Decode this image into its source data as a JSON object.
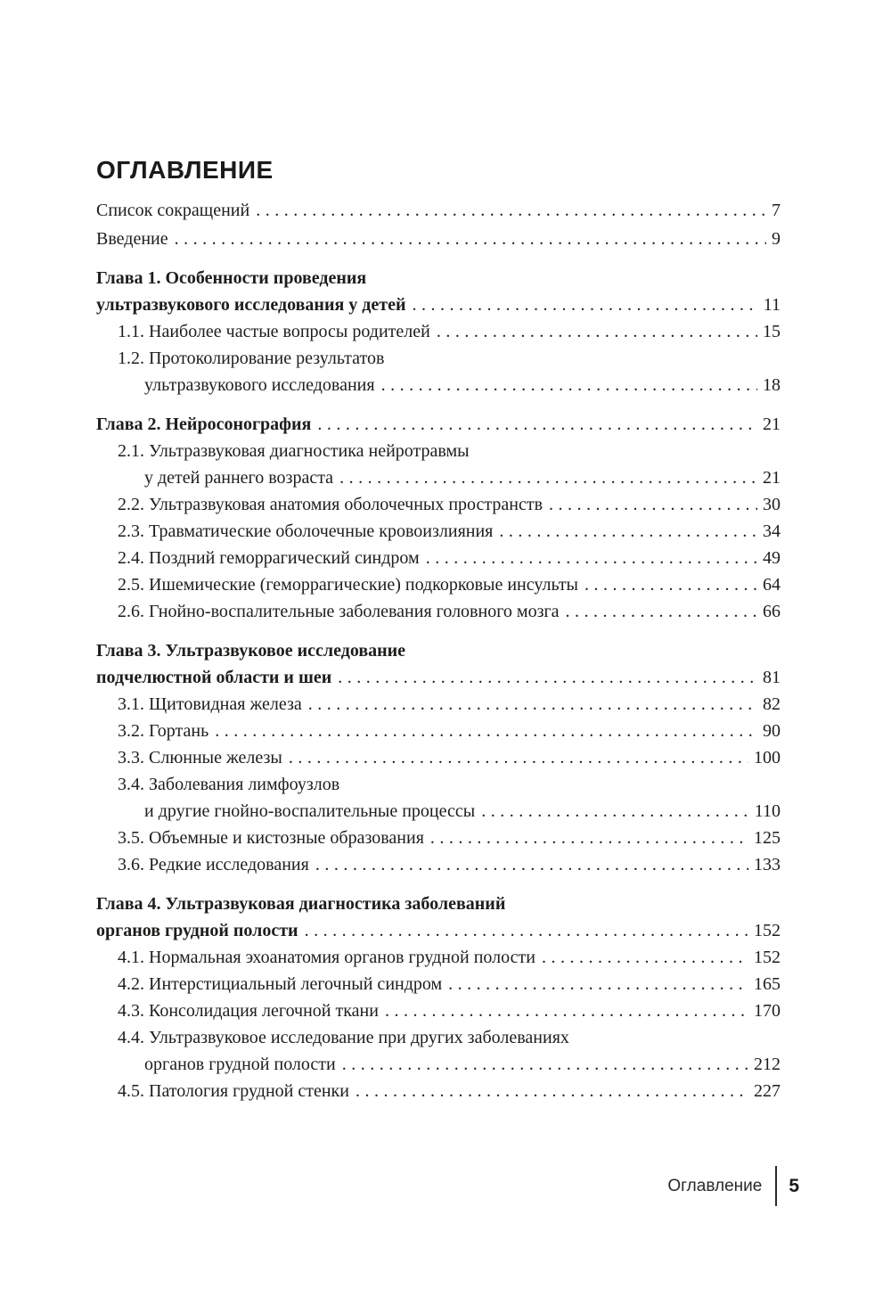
{
  "page_title": "ОГЛАВЛЕНИЕ",
  "footer": {
    "section_label": "Оглавление",
    "page_number": "5"
  },
  "colors": {
    "text": "#1d1d1b",
    "background": "#ffffff"
  },
  "toc": {
    "entries": [
      {
        "type": "front",
        "lines": [
          "Список сокращений"
        ],
        "page": "7"
      },
      {
        "type": "front",
        "lines": [
          "Введение"
        ],
        "page": "9"
      },
      {
        "type": "chapter",
        "lines": [
          "Глава 1. Особенности проведения",
          "ультразвукового исследования у детей"
        ],
        "page": "11"
      },
      {
        "type": "section",
        "lines": [
          "1.1. Наиболее частые вопросы родителей"
        ],
        "page": "15"
      },
      {
        "type": "section",
        "lines": [
          "1.2. Протоколирование результатов",
          "ультразвукового исследования"
        ],
        "page": "18"
      },
      {
        "type": "chapter",
        "lines": [
          "Глава 2. Нейросонография"
        ],
        "page": "21"
      },
      {
        "type": "section",
        "lines": [
          "2.1. Ультразвуковая диагностика нейротравмы",
          "у детей раннего возраста"
        ],
        "page": "21"
      },
      {
        "type": "section",
        "lines": [
          "2.2. Ультразвуковая анатомия оболочечных пространств"
        ],
        "page": "30"
      },
      {
        "type": "section",
        "lines": [
          "2.3. Травматические оболочечные кровоизлияния"
        ],
        "page": "34"
      },
      {
        "type": "section",
        "lines": [
          "2.4. Поздний геморрагический синдром"
        ],
        "page": "49"
      },
      {
        "type": "section",
        "lines": [
          "2.5. Ишемические (геморрагические) подкорковые инсульты"
        ],
        "page": "64"
      },
      {
        "type": "section",
        "lines": [
          "2.6. Гнойно-воспалительные заболевания головного мозга"
        ],
        "page": "66"
      },
      {
        "type": "chapter",
        "lines": [
          "Глава 3. Ультразвуковое исследование",
          "подчелюстной области и шеи"
        ],
        "page": "81"
      },
      {
        "type": "section",
        "lines": [
          "3.1. Щитовидная железа"
        ],
        "page": "82"
      },
      {
        "type": "section",
        "lines": [
          "3.2. Гортань"
        ],
        "page": "90"
      },
      {
        "type": "section",
        "lines": [
          "3.3. Слюнные железы"
        ],
        "page": "100"
      },
      {
        "type": "section",
        "lines": [
          "3.4. Заболевания лимфоузлов",
          "и другие гнойно-воспалительные процессы"
        ],
        "page": "110"
      },
      {
        "type": "section",
        "lines": [
          "3.5. Объемные и кистозные образования"
        ],
        "page": "125"
      },
      {
        "type": "section",
        "lines": [
          "3.6. Редкие исследования"
        ],
        "page": "133"
      },
      {
        "type": "chapter",
        "lines": [
          "Глава 4. Ультразвуковая диагностика заболеваний",
          "органов грудной полости"
        ],
        "page": "152"
      },
      {
        "type": "section",
        "lines": [
          "4.1. Нормальная эхоанатомия органов грудной полости"
        ],
        "page": "152"
      },
      {
        "type": "section",
        "lines": [
          "4.2. Интерстициальный легочный синдром"
        ],
        "page": "165"
      },
      {
        "type": "section",
        "lines": [
          "4.3. Консолидация легочной ткани"
        ],
        "page": "170"
      },
      {
        "type": "section",
        "lines": [
          "4.4. Ультразвуковое исследование при других заболеваниях",
          "органов грудной полости"
        ],
        "page": "212"
      },
      {
        "type": "section",
        "lines": [
          "4.5. Патология грудной стенки"
        ],
        "page": "227"
      }
    ]
  }
}
